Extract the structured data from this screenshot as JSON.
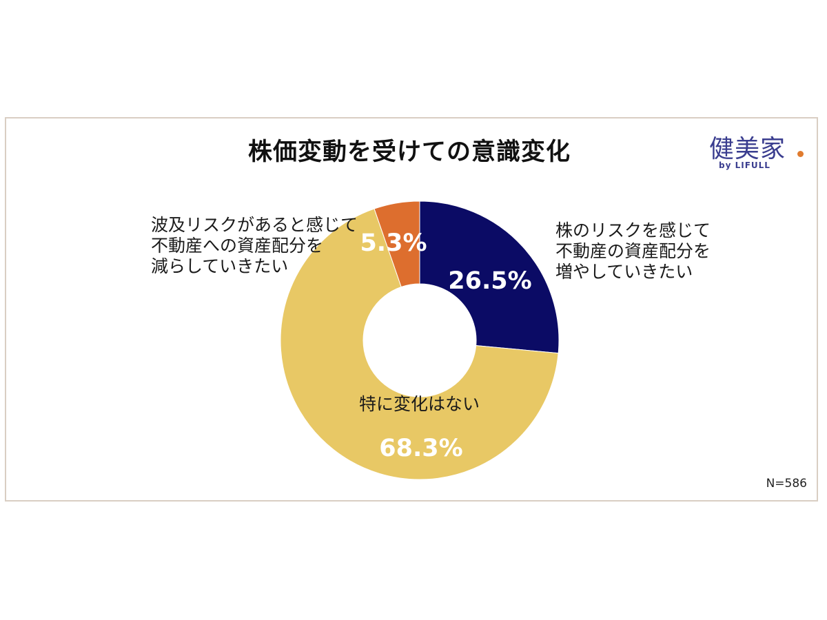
{
  "title": "株価変動を受けての意識変化",
  "logo": {
    "main": "健美家",
    "sub": "by LIFULL",
    "dot_color": "#e07b2e",
    "text_color": "#3a3d8f"
  },
  "sample_size": "N=586",
  "chart_data": {
    "type": "pie",
    "donut": true,
    "title": "株価変動を受けての意識変化",
    "start": "top",
    "direction": "clockwise",
    "slices": [
      {
        "label": "株のリスクを感じて\n不動産の資産配分を\n増やしていきたい",
        "value": 26.5,
        "display": "26.5%",
        "color": "#0b0b65"
      },
      {
        "label": "特に変化はない",
        "value": 68.3,
        "display": "68.3%",
        "color": "#e8c865"
      },
      {
        "label": "波及リスクがあると感じて\n不動産への資産配分を\n減らしていきたい",
        "value": 5.3,
        "display": "5.3%",
        "color": "#dd6e2e"
      }
    ]
  }
}
